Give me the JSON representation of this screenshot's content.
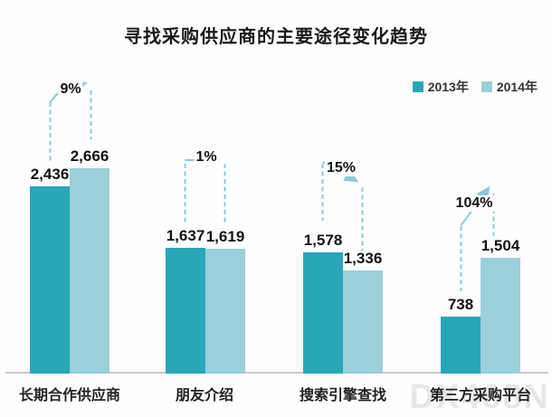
{
  "chart_data": {
    "type": "bar",
    "title": "寻找采购供应商的主要途径变化趋势",
    "categories": [
      "长期合作供应商",
      "朋友介绍",
      "搜索引擎查找",
      "第三方采购平台"
    ],
    "series": [
      {
        "name": "2013年",
        "color": "#29A7B8",
        "values": [
          2436,
          1637,
          1578,
          738
        ],
        "labels": [
          "2,436",
          "1,637",
          "1,578",
          "738"
        ]
      },
      {
        "name": "2014年",
        "color": "#9BCFDA",
        "values": [
          2666,
          1619,
          1336,
          1504
        ],
        "labels": [
          "2,666",
          "1,619",
          "1,336",
          "1,504"
        ]
      }
    ],
    "changes": [
      {
        "label": "9%",
        "direction": "up"
      },
      {
        "label": "1%",
        "direction": "flat"
      },
      {
        "label": "15%",
        "direction": "down"
      },
      {
        "label": "104%",
        "direction": "up"
      }
    ],
    "annotation_color": "#8FC8DB",
    "baseline_color": "#cbcbcb",
    "ylim": [
      0,
      2800
    ],
    "grid": false,
    "legend_position": "top-right"
  },
  "watermark": {
    "text": "DX468N"
  }
}
